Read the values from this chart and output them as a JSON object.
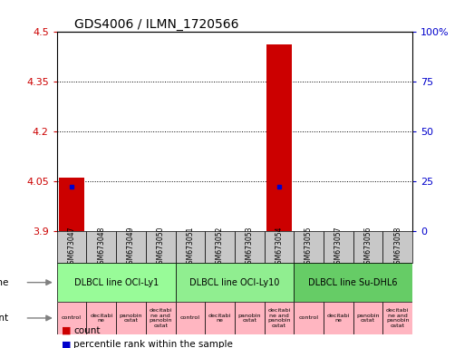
{
  "title": "GDS4006 / ILMN_1720566",
  "samples": [
    "GSM673047",
    "GSM673048",
    "GSM673049",
    "GSM673050",
    "GSM673051",
    "GSM673052",
    "GSM673053",
    "GSM673054",
    "GSM673055",
    "GSM673057",
    "GSM673056",
    "GSM673058"
  ],
  "count_values": [
    4.06,
    3.9,
    3.9,
    3.9,
    3.9,
    3.9,
    3.9,
    4.46,
    3.9,
    3.9,
    3.9,
    3.9
  ],
  "percentile_values": [
    22,
    0,
    0,
    0,
    0,
    0,
    0,
    22,
    0,
    0,
    0,
    0
  ],
  "ylim_left": [
    3.9,
    4.5
  ],
  "ylim_right": [
    0,
    100
  ],
  "yticks_left": [
    3.9,
    4.05,
    4.2,
    4.35,
    4.5
  ],
  "yticks_right": [
    0,
    25,
    50,
    75,
    100
  ],
  "ytick_labels_left": [
    "3.9",
    "4.05",
    "4.2",
    "4.35",
    "4.5"
  ],
  "ytick_labels_right": [
    "0",
    "25",
    "50",
    "75",
    "100%"
  ],
  "cell_line_groups": [
    {
      "label": "DLBCL line OCI-Ly1",
      "start": 0,
      "end": 3,
      "color": "#98FB98"
    },
    {
      "label": "DLBCL line OCI-Ly10",
      "start": 4,
      "end": 7,
      "color": "#90EE90"
    },
    {
      "label": "DLBCL line Su-DHL6",
      "start": 8,
      "end": 11,
      "color": "#66CC66"
    }
  ],
  "agent_labels": [
    "control",
    "decitabi\nne",
    "panobin\nostat",
    "decitabi\nne and\npanobin\nostat",
    "control",
    "decitabi\nne",
    "panobin\nostat",
    "decitabi\nne and\npanobin\nostat",
    "control",
    "decitabi\nne",
    "panobin\nostat",
    "decitabi\nne and\npanobin\nostat"
  ],
  "agent_colors": [
    "#FFB6C1",
    "#FFB6C1",
    "#FFB6C1",
    "#FFB6C1",
    "#FFB6C1",
    "#FFB6C1",
    "#FFB6C1",
    "#FFB6C1",
    "#FFB6C1",
    "#FFB6C1",
    "#FFB6C1",
    "#FFB6C1"
  ],
  "bar_color": "#CC0000",
  "percentile_color": "#0000CC",
  "tick_color_left": "#CC0000",
  "tick_color_right": "#0000CC",
  "background_color": "#ffffff",
  "grid_color": "#000000",
  "sample_bg_color": "#C8C8C8"
}
